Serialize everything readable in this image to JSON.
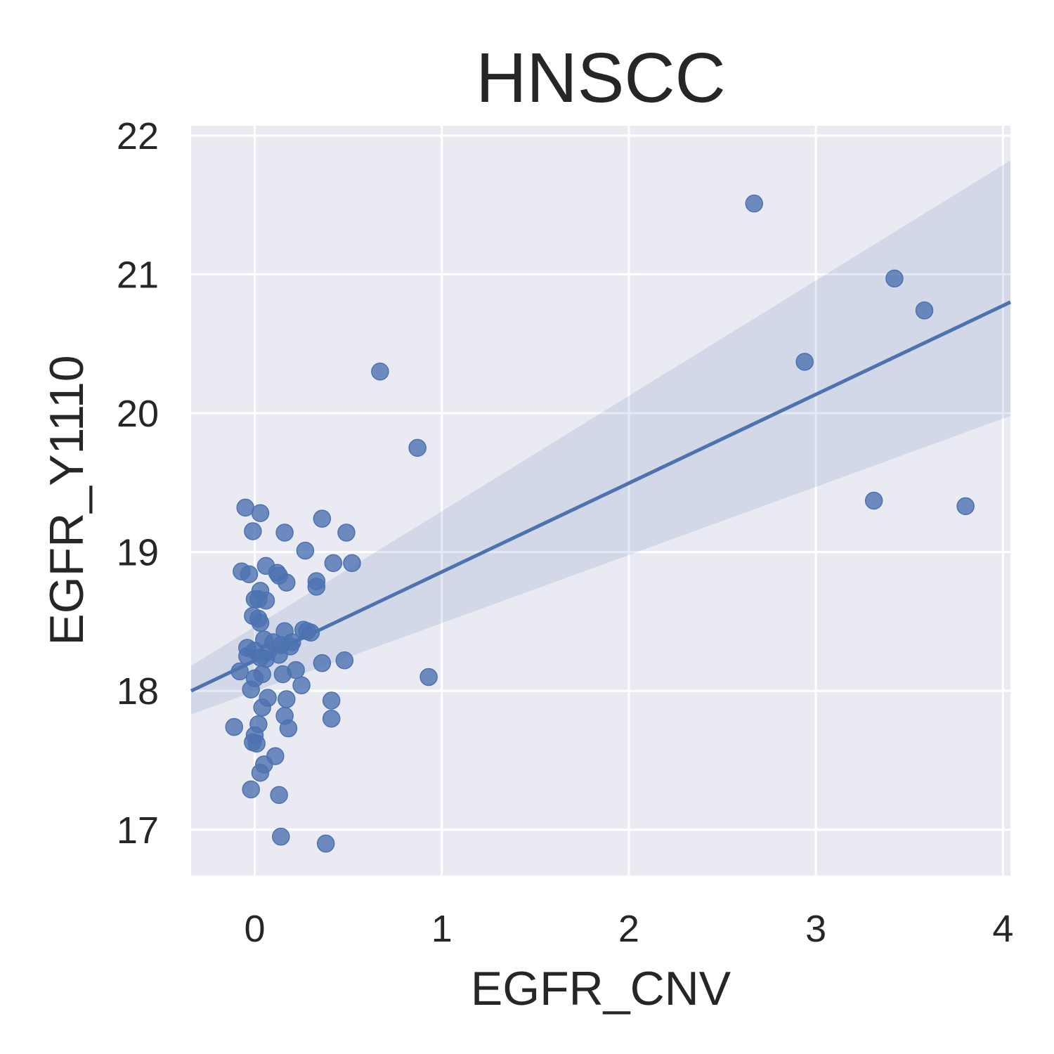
{
  "chart_data": {
    "type": "scatter",
    "title": "HNSCC",
    "xlabel": "EGFR_CNV",
    "ylabel": "EGFR_Y1110",
    "xlim": [
      -0.34,
      4.04
    ],
    "ylim": [
      16.67,
      22.07
    ],
    "xticks": [
      0,
      1,
      2,
      3,
      4
    ],
    "yticks": [
      17,
      18,
      19,
      20,
      21,
      22
    ],
    "grid": true,
    "regression": {
      "x": [
        -0.34,
        4.04
      ],
      "y": [
        18.0,
        20.8
      ],
      "ci_upper": [
        18.18,
        21.82
      ],
      "ci_lower": [
        17.83,
        19.98
      ]
    },
    "colors": {
      "background": "#eaeaf2",
      "grid": "#ffffff",
      "points": "#4c72b0",
      "line": "#4c72b0",
      "band": "#4c72b0"
    },
    "points": [
      [
        2.67,
        21.51
      ],
      [
        3.42,
        20.97
      ],
      [
        3.58,
        20.74
      ],
      [
        2.94,
        20.37
      ],
      [
        0.67,
        20.3
      ],
      [
        0.87,
        19.75
      ],
      [
        3.31,
        19.37
      ],
      [
        3.8,
        19.33
      ],
      [
        0.93,
        18.1
      ],
      [
        -0.05,
        19.32
      ],
      [
        0.03,
        19.28
      ],
      [
        -0.01,
        19.15
      ],
      [
        0.16,
        19.14
      ],
      [
        0.36,
        19.24
      ],
      [
        0.49,
        19.14
      ],
      [
        0.27,
        19.01
      ],
      [
        0.06,
        18.9
      ],
      [
        0.42,
        18.92
      ],
      [
        0.52,
        18.92
      ],
      [
        -0.07,
        18.86
      ],
      [
        -0.03,
        18.84
      ],
      [
        0.12,
        18.85
      ],
      [
        0.13,
        18.83
      ],
      [
        0.17,
        18.78
      ],
      [
        0.33,
        18.79
      ],
      [
        0.33,
        18.75
      ],
      [
        0.03,
        18.72
      ],
      [
        0.0,
        18.66
      ],
      [
        0.06,
        18.65
      ],
      [
        0.02,
        18.66
      ],
      [
        -0.01,
        18.54
      ],
      [
        0.02,
        18.52
      ],
      [
        0.03,
        18.49
      ],
      [
        0.16,
        18.43
      ],
      [
        0.26,
        18.44
      ],
      [
        0.28,
        18.43
      ],
      [
        0.3,
        18.42
      ],
      [
        0.05,
        18.37
      ],
      [
        0.1,
        18.35
      ],
      [
        0.14,
        18.33
      ],
      [
        0.19,
        18.32
      ],
      [
        0.2,
        18.35
      ],
      [
        -0.04,
        18.31
      ],
      [
        0.0,
        18.29
      ],
      [
        0.07,
        18.28
      ],
      [
        0.13,
        18.26
      ],
      [
        -0.04,
        18.25
      ],
      [
        0.03,
        18.24
      ],
      [
        0.06,
        18.23
      ],
      [
        0.36,
        18.2
      ],
      [
        0.48,
        18.22
      ],
      [
        0.22,
        18.15
      ],
      [
        -0.08,
        18.14
      ],
      [
        0.15,
        18.12
      ],
      [
        0.0,
        18.09
      ],
      [
        0.04,
        18.12
      ],
      [
        0.25,
        18.04
      ],
      [
        -0.02,
        18.01
      ],
      [
        0.07,
        17.95
      ],
      [
        0.17,
        17.94
      ],
      [
        0.41,
        17.93
      ],
      [
        0.04,
        17.88
      ],
      [
        0.16,
        17.82
      ],
      [
        0.41,
        17.8
      ],
      [
        0.02,
        17.76
      ],
      [
        -0.11,
        17.74
      ],
      [
        0.18,
        17.73
      ],
      [
        0.0,
        17.68
      ],
      [
        -0.01,
        17.63
      ],
      [
        0.01,
        17.62
      ],
      [
        0.11,
        17.53
      ],
      [
        0.05,
        17.47
      ],
      [
        0.03,
        17.41
      ],
      [
        -0.02,
        17.29
      ],
      [
        0.13,
        17.25
      ],
      [
        0.14,
        16.95
      ],
      [
        0.38,
        16.9
      ]
    ]
  }
}
